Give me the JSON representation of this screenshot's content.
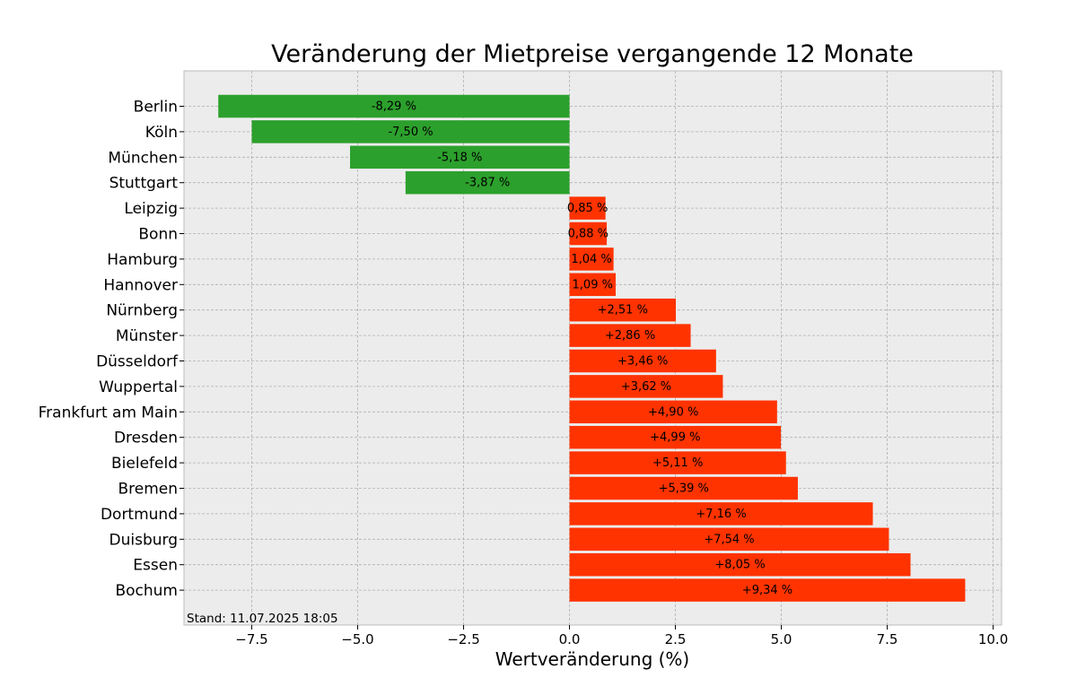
{
  "chart_data": {
    "type": "bar",
    "orientation": "horizontal",
    "title": "Veränderung der Mietpreise vergangende 12 Monate",
    "xlabel": "Wertveränderung (%)",
    "ylabel": "",
    "xlim": [
      -9.1,
      10.2
    ],
    "xticks": [
      -7.5,
      -5.0,
      -2.5,
      0.0,
      2.5,
      5.0,
      7.5,
      10.0
    ],
    "xtick_labels": [
      "−7.5",
      "−5.0",
      "−2.5",
      "0.0",
      "2.5",
      "5.0",
      "7.5",
      "10.0"
    ],
    "grid": true,
    "categories": [
      "Berlin",
      "Köln",
      "München",
      "Stuttgart",
      "Leipzig",
      "Bonn",
      "Hamburg",
      "Hannover",
      "Nürnberg",
      "Münster",
      "Düsseldorf",
      "Wuppertal",
      "Frankfurt am Main",
      "Dresden",
      "Bielefeld",
      "Bremen",
      "Dortmund",
      "Duisburg",
      "Essen",
      "Bochum"
    ],
    "values": [
      -8.29,
      -7.5,
      -5.18,
      -3.87,
      0.85,
      0.88,
      1.04,
      1.09,
      2.51,
      2.86,
      3.46,
      3.62,
      4.9,
      4.99,
      5.11,
      5.39,
      7.16,
      7.54,
      8.05,
      9.34
    ],
    "value_labels": [
      "-8,29 %",
      "-7,50 %",
      "-5,18 %",
      "-3,87 %",
      "0,85 %",
      "0,88 %",
      "1,04 %",
      "1,09 %",
      "+2,51 %",
      "+2,86 %",
      "+3,46 %",
      "+3,62 %",
      "+4,90 %",
      "+4,99 %",
      "+5,11 %",
      "+5,39 %",
      "+7,16 %",
      "+7,54 %",
      "+8,05 %",
      "+9,34 %"
    ],
    "colors": {
      "negative": "#2ca02c",
      "positive": "#ff3300",
      "plot_background": "#ececec"
    },
    "footnote": "Stand: 11.07.2025 18:05"
  }
}
